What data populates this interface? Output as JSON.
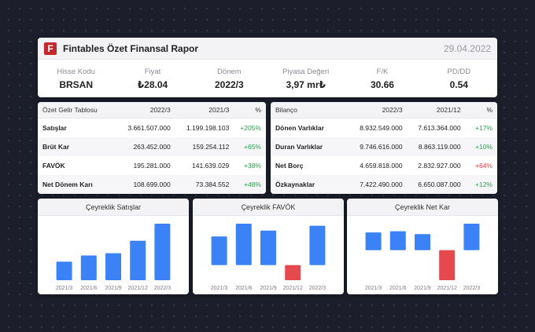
{
  "header": {
    "logo_letter": "F",
    "title": "Fintables Özet Finansal Rapor",
    "date": "29.04.2022",
    "metrics": [
      {
        "label": "Hisse Kodu",
        "value": "BRSAN"
      },
      {
        "label": "Fiyat",
        "value": "₺28.04"
      },
      {
        "label": "Dönem",
        "value": "2022/3"
      },
      {
        "label": "Piyasa Değeri",
        "value": "3,97 mr₺"
      },
      {
        "label": "F/K",
        "value": "30.66"
      },
      {
        "label": "PD/DD",
        "value": "0.54"
      }
    ]
  },
  "income": {
    "headers": [
      "Özet Gelir Tablosu",
      "2022/3",
      "2021/3",
      "%"
    ],
    "rows": [
      {
        "name": "Satışlar",
        "v1": "3.661.507.000",
        "v2": "1.199.198.103",
        "pct": "+205%",
        "sign": "pos"
      },
      {
        "name": "Brüt Kar",
        "v1": "263.452.000",
        "v2": "159.254.112",
        "pct": "+65%",
        "sign": "pos"
      },
      {
        "name": "FAVÖK",
        "v1": "195.281.000",
        "v2": "141.639.029",
        "pct": "+38%",
        "sign": "pos"
      },
      {
        "name": "Net Dönem Karı",
        "v1": "108.699.000",
        "v2": "73.384.552",
        "pct": "+48%",
        "sign": "pos"
      }
    ]
  },
  "balance": {
    "headers": [
      "Bilanço",
      "2022/3",
      "2021/12",
      "%"
    ],
    "rows": [
      {
        "name": "Dönen Varlıklar",
        "v1": "8.932.549.000",
        "v2": "7.613.364.000",
        "pct": "+17%",
        "sign": "pos"
      },
      {
        "name": "Duran Varlıklar",
        "v1": "9.746.616.000",
        "v2": "8.863.119.000",
        "pct": "+10%",
        "sign": "pos"
      },
      {
        "name": "Net Borç",
        "v1": "4.659.818.000",
        "v2": "2.832.927.000",
        "pct": "+64%",
        "sign": "neg"
      },
      {
        "name": "Özkaynaklar",
        "v1": "7.422.490.000",
        "v2": "6.650.087.000",
        "pct": "+12%",
        "sign": "pos"
      }
    ]
  },
  "colors": {
    "positive_bar": "#3b82f6",
    "negative_bar": "#e5484d",
    "positive_text": "#24a148",
    "negative_text": "#e0393e"
  },
  "chart_data": [
    {
      "type": "bar",
      "title": "Çeyreklik Satışlar",
      "categories": [
        "2021/3",
        "2021/6",
        "2021/9",
        "2021/12",
        "2022/3"
      ],
      "values": [
        1.2,
        1.6,
        1.75,
        2.55,
        3.66
      ],
      "ylim": [
        0,
        3.66
      ]
    },
    {
      "type": "bar",
      "title": "Çeyreklik FAVÖK",
      "categories": [
        "2021/3",
        "2021/6",
        "2021/9",
        "2021/12",
        "2022/3"
      ],
      "values": [
        142,
        205,
        171,
        -75,
        195
      ],
      "ylim": [
        -75,
        205
      ]
    },
    {
      "type": "bar",
      "title": "Çeyreklik Net Kar",
      "categories": [
        "2021/3",
        "2021/6",
        "2021/9",
        "2021/12",
        "2022/3"
      ],
      "values": [
        73,
        78,
        66,
        -124,
        109
      ],
      "ylim": [
        -124,
        109
      ]
    }
  ]
}
